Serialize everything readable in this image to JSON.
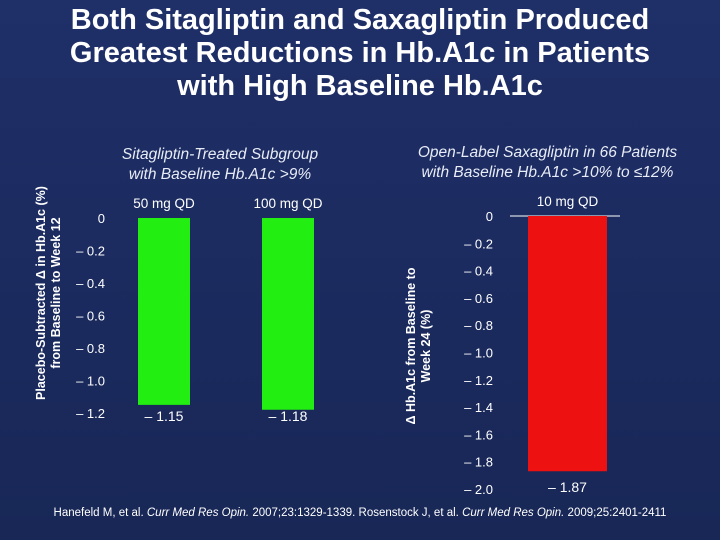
{
  "title": {
    "line1": "Both Sitagliptin and Saxagliptin Produced",
    "line2": "Greatest Reductions in Hb.A1c in Patients",
    "line3": "with High Baseline Hb.A1c"
  },
  "footer": {
    "ref1_authors": "Hanefeld M, et al.",
    "ref1_journal": "Curr Med Res Opin.",
    "ref1_details": "2007;23:1329-1339.",
    "ref2_authors": "Rosenstock J, et al.",
    "ref2_journal": "Curr Med Res Opin.",
    "ref2_details": "2009;25:2401-2411"
  },
  "colors": {
    "bar": "#22ee11",
    "bar2": "#ee1111",
    "background": "#1a2a5e",
    "text": "#ffffff"
  },
  "chart_data": [
    {
      "type": "bar",
      "subtitle": [
        "Sitagliptin-Treated Subgroup",
        "with Baseline Hb.A1c >9%"
      ],
      "ylabel": [
        "Placebo-Subtracted Δ in Hb.A1c (%)",
        "from Baseline to Week 12"
      ],
      "categories": [
        "50 mg QD",
        "100 mg QD"
      ],
      "values": [
        -1.15,
        -1.18
      ],
      "value_labels": [
        "– 1.15",
        "– 1.18"
      ],
      "ylim": [
        -1.2,
        0
      ],
      "yticks": [
        0,
        -0.2,
        -0.4,
        -0.6,
        -0.8,
        -1.0,
        -1.2
      ],
      "ytick_labels": [
        "0",
        "– 0.2",
        "– 0.4",
        "– 0.6",
        "– 0.8",
        "– 1.0",
        "– 1.2"
      ],
      "color": "#22ee11",
      "grid": false
    },
    {
      "type": "bar",
      "subtitle": [
        "Open-Label Saxagliptin in 66 Patients",
        "with Baseline Hb.A1c >10% to ≤12%"
      ],
      "ylabel": [
        "Δ Hb.A1c from Baseline to",
        "Week 24 (%)"
      ],
      "categories": [
        "10 mg QD"
      ],
      "values": [
        -1.87
      ],
      "value_labels": [
        "– 1.87"
      ],
      "ylim": [
        -2.0,
        0
      ],
      "yticks": [
        0,
        -0.2,
        -0.4,
        -0.6,
        -0.8,
        -1.0,
        -1.2,
        -1.4,
        -1.6,
        -1.8,
        -2.0
      ],
      "ytick_labels": [
        "0",
        "– 0.2",
        "– 0.4",
        "– 0.6",
        "– 0.8",
        "– 1.0",
        "– 1.2",
        "– 1.4",
        "– 1.6",
        "– 1.8",
        "– 2.0"
      ],
      "color": "#ee1111",
      "grid": false
    }
  ]
}
